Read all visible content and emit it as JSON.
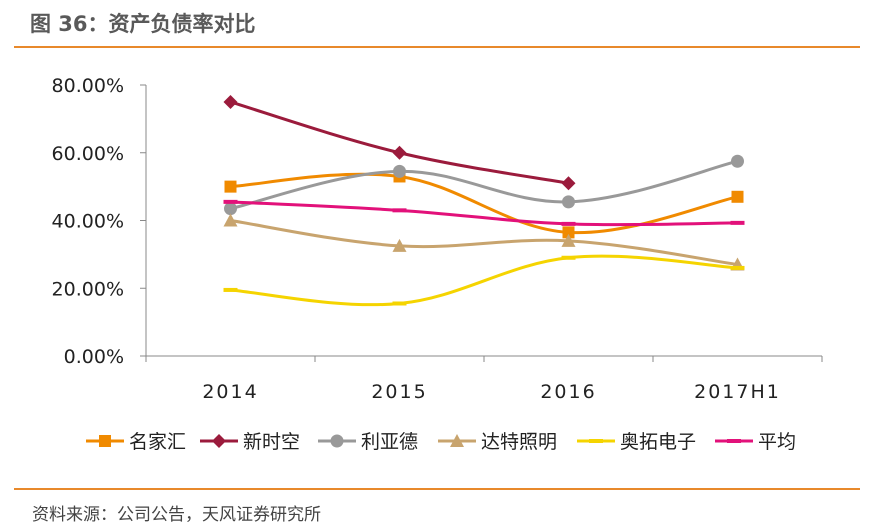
{
  "figure_title": "图 36：资产负债率对比",
  "source_note": "资料来源：公司公告，天风证券研究所",
  "chart_data": {
    "type": "line",
    "title": "资产负债率对比",
    "categories": [
      "2014",
      "2015",
      "2016",
      "2017H1"
    ],
    "xlabel": "",
    "ylabel": "",
    "ylim": [
      0,
      80
    ],
    "yticks": [
      "0.00%",
      "20.00%",
      "40.00%",
      "60.00%",
      "80.00%"
    ],
    "grid": false,
    "legend_position": "bottom",
    "series": [
      {
        "name": "名家汇",
        "values": [
          50.0,
          53.0,
          36.5,
          47.0
        ],
        "color": "#f08a00",
        "marker": "square"
      },
      {
        "name": "新时空",
        "values": [
          75.0,
          60.0,
          51.0,
          null
        ],
        "color": "#9b1b3c",
        "marker": "diamond"
      },
      {
        "name": "利亚德",
        "values": [
          43.5,
          54.5,
          45.5,
          57.5
        ],
        "color": "#999999",
        "marker": "circle"
      },
      {
        "name": "达特照明",
        "values": [
          40.0,
          32.5,
          34.0,
          27.0
        ],
        "color": "#c8a46e",
        "marker": "triangle"
      },
      {
        "name": "奥拓电子",
        "values": [
          19.5,
          15.5,
          29.0,
          26.0
        ],
        "color": "#f5d400",
        "marker": "dash"
      },
      {
        "name": "平均",
        "values": [
          45.5,
          43.0,
          39.0,
          39.3
        ],
        "color": "#e2117a",
        "marker": "dash"
      }
    ]
  }
}
